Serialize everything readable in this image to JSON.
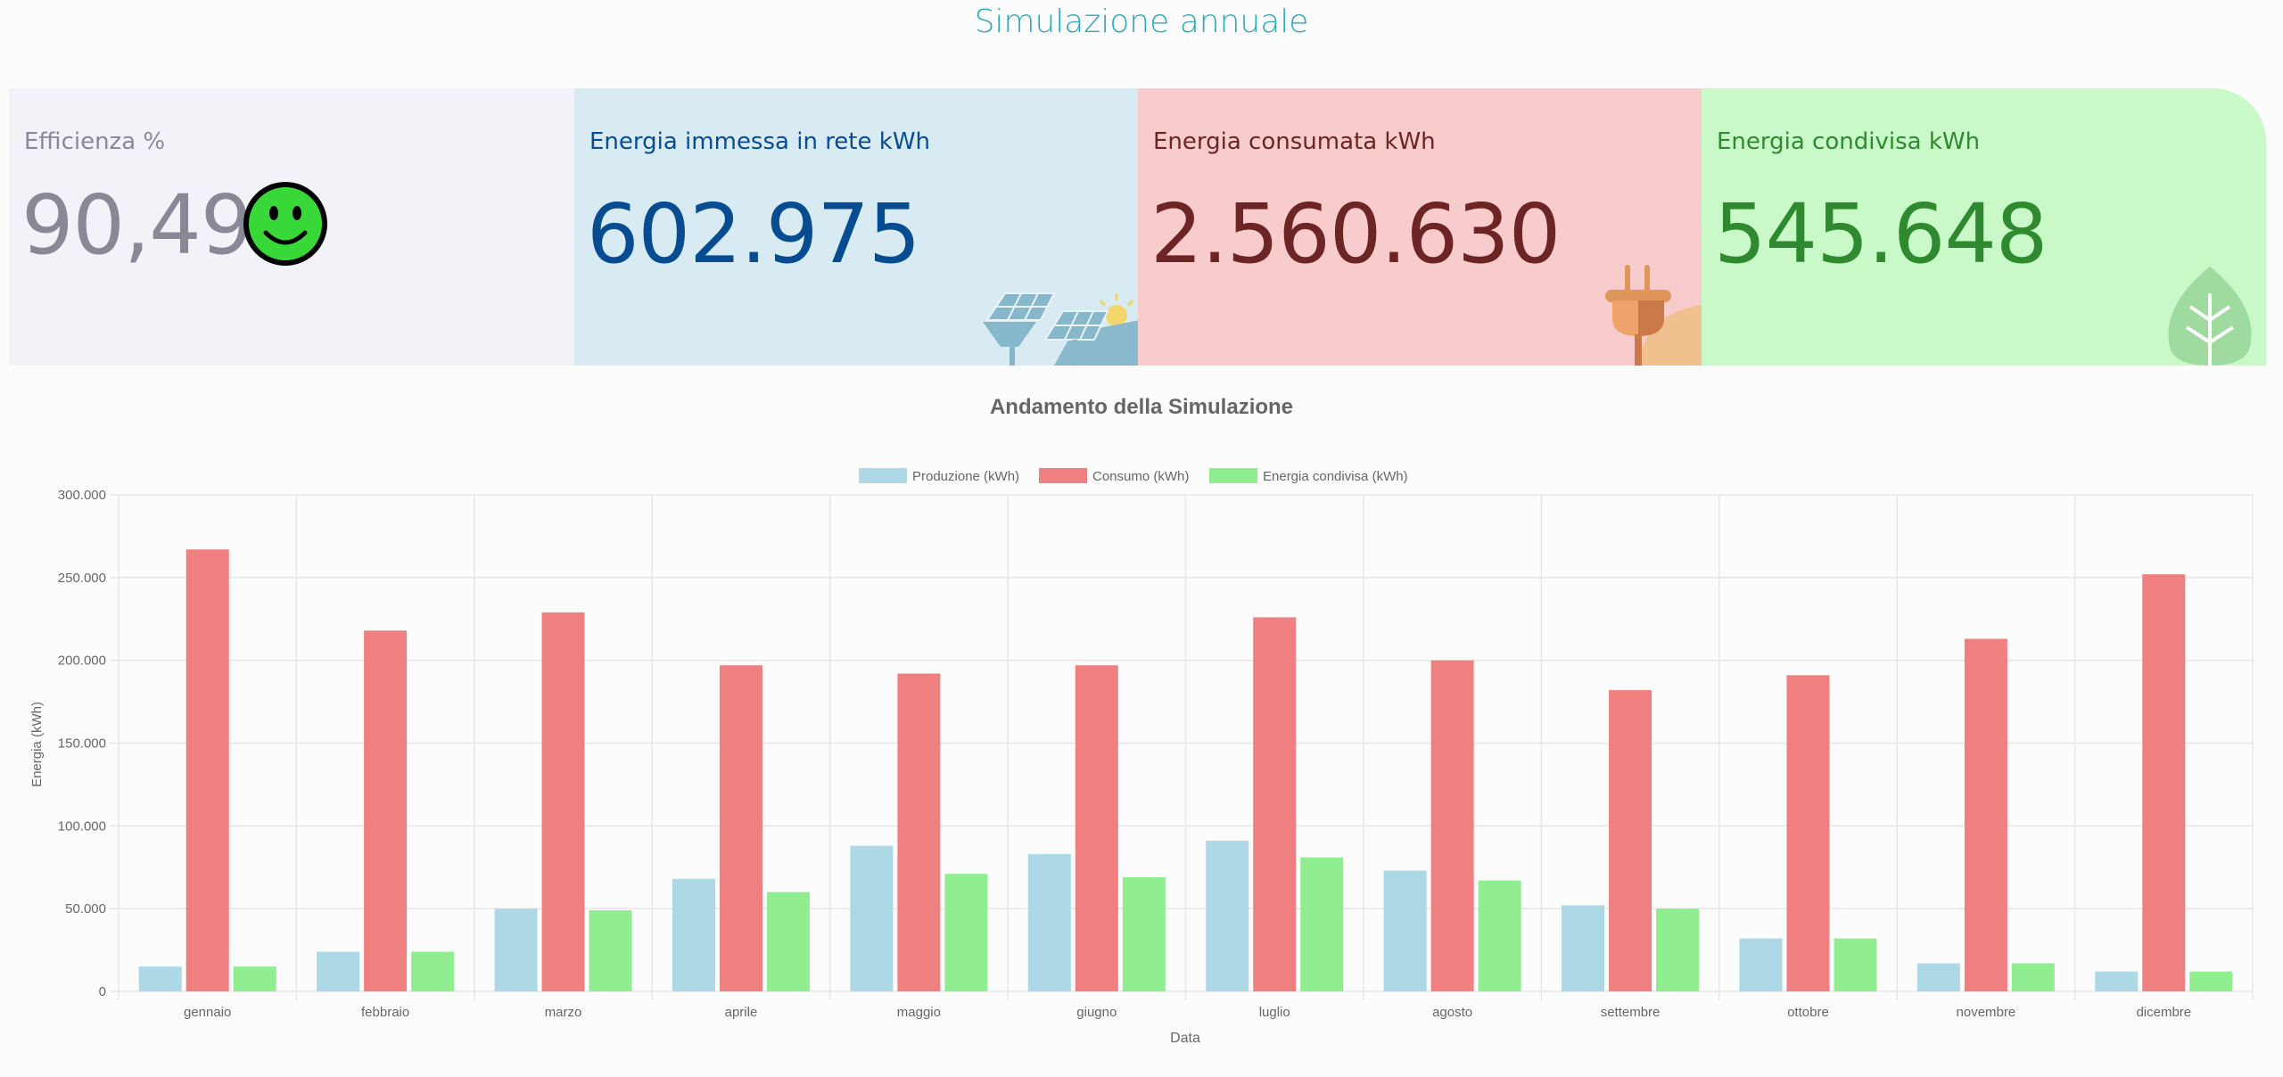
{
  "page": {
    "title": "Simulazione annuale"
  },
  "cards": [
    {
      "label": "Efficienza %",
      "value": "90,49",
      "icon": "smiley-icon"
    },
    {
      "label": "Energia immessa in rete kWh",
      "value": "602.975",
      "icon": "solar-panel-icon"
    },
    {
      "label": "Energia consumata kWh",
      "value": "2.560.630",
      "icon": "plug-icon"
    },
    {
      "label": "Energia condivisa kWh",
      "value": "545.648",
      "icon": "leaf-icon"
    }
  ],
  "colors": {
    "produzione": "#add8e6",
    "consumo": "#f08080",
    "condivisa": "#90ee90",
    "grid": "#e6e6e6",
    "text": "#666666"
  },
  "chart_data": {
    "type": "bar",
    "title": "Andamento della Simulazione",
    "xlabel": "Data",
    "ylabel": "Energia (kWh)",
    "ylim": [
      0,
      300000
    ],
    "yticks": [
      "0",
      "50.000",
      "100.000",
      "150.000",
      "200.000",
      "250.000",
      "300.000"
    ],
    "legend_position": "top-center",
    "categories": [
      "gennaio",
      "febbraio",
      "marzo",
      "aprile",
      "maggio",
      "giugno",
      "luglio",
      "agosto",
      "settembre",
      "ottobre",
      "novembre",
      "dicembre"
    ],
    "series": [
      {
        "name": "Produzione (kWh)",
        "values": [
          15000,
          24000,
          50000,
          68000,
          88000,
          83000,
          91000,
          73000,
          52000,
          32000,
          17000,
          12000
        ]
      },
      {
        "name": "Consumo (kWh)",
        "values": [
          267000,
          218000,
          229000,
          197000,
          192000,
          197000,
          226000,
          200000,
          182000,
          191000,
          213000,
          252000
        ]
      },
      {
        "name": "Energia condivisa (kWh)",
        "values": [
          15000,
          24000,
          49000,
          60000,
          71000,
          69000,
          81000,
          67000,
          50000,
          32000,
          17000,
          12000
        ]
      }
    ]
  }
}
